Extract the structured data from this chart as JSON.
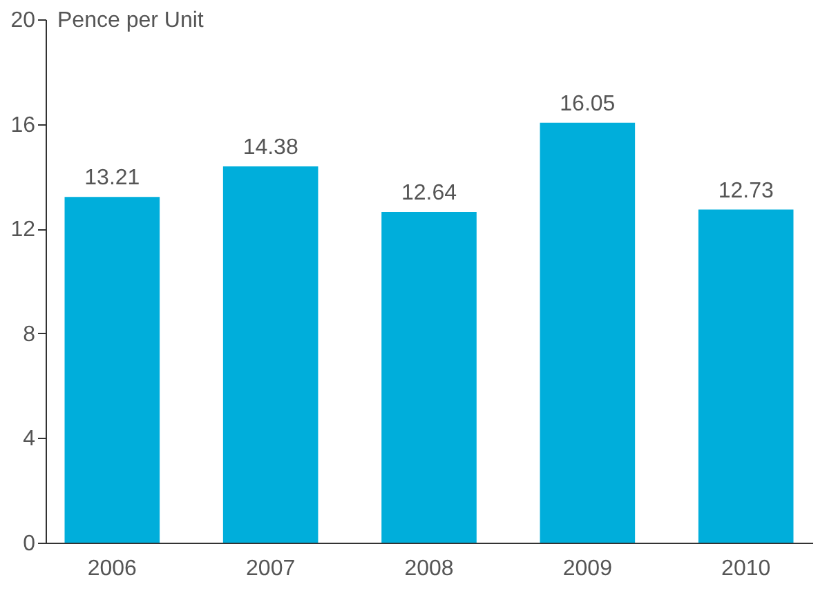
{
  "chart_data": {
    "type": "bar",
    "ylabel": "Pence per Unit",
    "categories": [
      "2006",
      "2007",
      "2008",
      "2009",
      "2010"
    ],
    "values": [
      13.21,
      14.38,
      12.64,
      16.05,
      12.73
    ],
    "color": "#00aedb",
    "ylim": [
      0,
      20
    ],
    "yticks": [
      0,
      4,
      8,
      12,
      16,
      20
    ],
    "data_labels": true,
    "grid": false
  }
}
